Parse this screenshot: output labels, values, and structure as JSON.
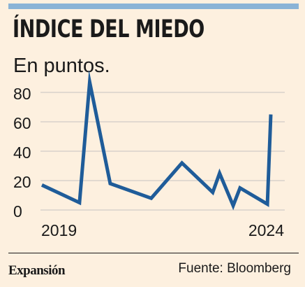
{
  "header": {
    "title": "ÍNDICE DEL MIEDO",
    "subtitle": "En puntos."
  },
  "footer": {
    "brand": "Expansión",
    "source": "Fuente: Bloomberg"
  },
  "colors": {
    "background": "#fdf0df",
    "line": "#1f5c99",
    "grid": "#c5c2c0",
    "text": "#1a1a1a",
    "top_bar": "#8ab3d6"
  },
  "chart_data": {
    "type": "line",
    "title": "ÍNDICE DEL MIEDO",
    "subtitle": "En puntos.",
    "xlabel": "",
    "ylabel": "",
    "x_tick_labels": [
      "2019",
      "2024"
    ],
    "x": [
      "2019-01",
      "2019-12",
      "2020-03",
      "2020-09",
      "2021-09",
      "2022-06",
      "2023-03",
      "2023-05",
      "2023-09",
      "2023-11",
      "2024-07",
      "2024-08"
    ],
    "series": [
      {
        "name": "",
        "values": [
          17,
          5,
          87,
          18,
          8,
          32,
          12,
          25,
          3,
          15,
          4,
          65
        ]
      }
    ],
    "yticks": [
      0,
      20,
      40,
      60,
      80
    ],
    "ylim": [
      0,
      90
    ],
    "grid": true,
    "legend": "none"
  }
}
